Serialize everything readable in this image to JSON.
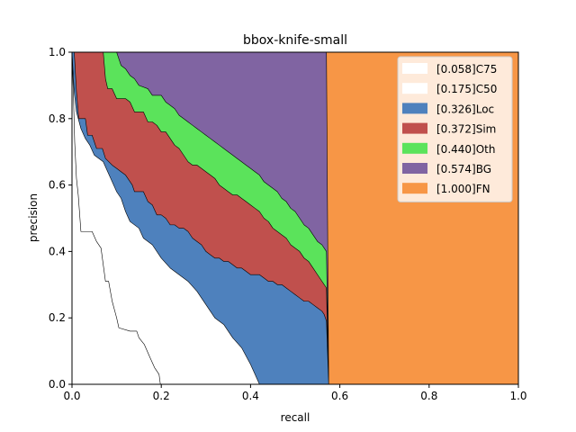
{
  "chart_data": {
    "type": "area",
    "title": "bbox-knife-small",
    "xlabel": "recall",
    "ylabel": "precision",
    "xlim": [
      0,
      1
    ],
    "ylim": [
      0,
      1
    ],
    "xticks": [
      "0.0",
      "0.2",
      "0.4",
      "0.6",
      "0.8",
      "1.0"
    ],
    "yticks": [
      "0.0",
      "0.2",
      "0.4",
      "0.6",
      "0.8",
      "1.0"
    ],
    "grid": false,
    "legend_position": "top-right",
    "series": [
      {
        "name": "[0.058]C75",
        "color": "#ffffff",
        "points": [
          [
            0,
            1.0
          ],
          [
            0.003,
            0.88
          ],
          [
            0.006,
            0.73
          ],
          [
            0.01,
            0.62
          ],
          [
            0.014,
            0.57
          ],
          [
            0.02,
            0.46
          ],
          [
            0.045,
            0.46
          ],
          [
            0.055,
            0.43
          ],
          [
            0.065,
            0.41
          ],
          [
            0.07,
            0.36
          ],
          [
            0.075,
            0.31
          ],
          [
            0.082,
            0.31
          ],
          [
            0.09,
            0.25
          ],
          [
            0.1,
            0.2
          ],
          [
            0.105,
            0.17
          ],
          [
            0.13,
            0.16
          ],
          [
            0.145,
            0.16
          ],
          [
            0.15,
            0.14
          ],
          [
            0.162,
            0.12
          ],
          [
            0.175,
            0.08
          ],
          [
            0.185,
            0.05
          ],
          [
            0.195,
            0.03
          ],
          [
            0.198,
            0
          ]
        ]
      },
      {
        "name": "[0.175]C50",
        "color": "#ffffff",
        "points": [
          [
            0,
            1.0
          ],
          [
            0.005,
            0.88
          ],
          [
            0.01,
            0.82
          ],
          [
            0.02,
            0.77
          ],
          [
            0.03,
            0.74
          ],
          [
            0.04,
            0.72
          ],
          [
            0.05,
            0.69
          ],
          [
            0.07,
            0.67
          ],
          [
            0.08,
            0.64
          ],
          [
            0.09,
            0.61
          ],
          [
            0.1,
            0.58
          ],
          [
            0.11,
            0.56
          ],
          [
            0.12,
            0.52
          ],
          [
            0.13,
            0.49
          ],
          [
            0.15,
            0.47
          ],
          [
            0.16,
            0.44
          ],
          [
            0.18,
            0.42
          ],
          [
            0.2,
            0.38
          ],
          [
            0.22,
            0.35
          ],
          [
            0.24,
            0.33
          ],
          [
            0.26,
            0.31
          ],
          [
            0.28,
            0.28
          ],
          [
            0.3,
            0.24
          ],
          [
            0.32,
            0.2
          ],
          [
            0.34,
            0.18
          ],
          [
            0.36,
            0.14
          ],
          [
            0.38,
            0.11
          ],
          [
            0.4,
            0.06
          ],
          [
            0.41,
            0.03
          ],
          [
            0.42,
            0
          ]
        ]
      },
      {
        "name": "[0.326]Loc",
        "color": "#4e81bd",
        "points": [
          [
            0,
            1.0
          ],
          [
            0.005,
            1.0
          ],
          [
            0.01,
            0.88
          ],
          [
            0.015,
            0.8
          ],
          [
            0.03,
            0.8
          ],
          [
            0.035,
            0.75
          ],
          [
            0.045,
            0.75
          ],
          [
            0.055,
            0.71
          ],
          [
            0.068,
            0.71
          ],
          [
            0.075,
            0.68
          ],
          [
            0.09,
            0.66
          ],
          [
            0.1,
            0.65
          ],
          [
            0.11,
            0.64
          ],
          [
            0.12,
            0.63
          ],
          [
            0.135,
            0.6
          ],
          [
            0.14,
            0.58
          ],
          [
            0.16,
            0.58
          ],
          [
            0.17,
            0.55
          ],
          [
            0.18,
            0.54
          ],
          [
            0.19,
            0.51
          ],
          [
            0.2,
            0.51
          ],
          [
            0.21,
            0.5
          ],
          [
            0.22,
            0.48
          ],
          [
            0.23,
            0.48
          ],
          [
            0.24,
            0.47
          ],
          [
            0.25,
            0.47
          ],
          [
            0.26,
            0.46
          ],
          [
            0.27,
            0.44
          ],
          [
            0.28,
            0.43
          ],
          [
            0.29,
            0.42
          ],
          [
            0.3,
            0.4
          ],
          [
            0.31,
            0.39
          ],
          [
            0.32,
            0.38
          ],
          [
            0.33,
            0.38
          ],
          [
            0.34,
            0.37
          ],
          [
            0.35,
            0.37
          ],
          [
            0.36,
            0.36
          ],
          [
            0.37,
            0.35
          ],
          [
            0.38,
            0.35
          ],
          [
            0.39,
            0.34
          ],
          [
            0.4,
            0.33
          ],
          [
            0.41,
            0.33
          ],
          [
            0.42,
            0.33
          ],
          [
            0.43,
            0.32
          ],
          [
            0.44,
            0.31
          ],
          [
            0.45,
            0.31
          ],
          [
            0.46,
            0.3
          ],
          [
            0.47,
            0.3
          ],
          [
            0.48,
            0.29
          ],
          [
            0.49,
            0.28
          ],
          [
            0.5,
            0.27
          ],
          [
            0.51,
            0.26
          ],
          [
            0.52,
            0.25
          ],
          [
            0.53,
            0.25
          ],
          [
            0.54,
            0.24
          ],
          [
            0.55,
            0.23
          ],
          [
            0.56,
            0.22
          ],
          [
            0.565,
            0.21
          ],
          [
            0.57,
            0.19
          ],
          [
            0.575,
            0.0
          ]
        ]
      },
      {
        "name": "[0.372]Sim",
        "color": "#c0504d",
        "points": [
          [
            0,
            1.0
          ],
          [
            0.07,
            1.0
          ],
          [
            0.075,
            0.92
          ],
          [
            0.08,
            0.89
          ],
          [
            0.09,
            0.89
          ],
          [
            0.1,
            0.86
          ],
          [
            0.12,
            0.86
          ],
          [
            0.13,
            0.85
          ],
          [
            0.14,
            0.82
          ],
          [
            0.16,
            0.82
          ],
          [
            0.17,
            0.79
          ],
          [
            0.18,
            0.79
          ],
          [
            0.19,
            0.78
          ],
          [
            0.2,
            0.76
          ],
          [
            0.21,
            0.76
          ],
          [
            0.22,
            0.74
          ],
          [
            0.23,
            0.72
          ],
          [
            0.24,
            0.71
          ],
          [
            0.25,
            0.69
          ],
          [
            0.26,
            0.67
          ],
          [
            0.27,
            0.66
          ],
          [
            0.28,
            0.66
          ],
          [
            0.29,
            0.65
          ],
          [
            0.3,
            0.64
          ],
          [
            0.31,
            0.63
          ],
          [
            0.32,
            0.62
          ],
          [
            0.33,
            0.6
          ],
          [
            0.34,
            0.59
          ],
          [
            0.35,
            0.58
          ],
          [
            0.36,
            0.57
          ],
          [
            0.37,
            0.57
          ],
          [
            0.38,
            0.56
          ],
          [
            0.39,
            0.55
          ],
          [
            0.4,
            0.54
          ],
          [
            0.41,
            0.53
          ],
          [
            0.42,
            0.52
          ],
          [
            0.43,
            0.5
          ],
          [
            0.44,
            0.49
          ],
          [
            0.45,
            0.47
          ],
          [
            0.46,
            0.46
          ],
          [
            0.47,
            0.45
          ],
          [
            0.48,
            0.44
          ],
          [
            0.49,
            0.42
          ],
          [
            0.5,
            0.41
          ],
          [
            0.51,
            0.4
          ],
          [
            0.52,
            0.38
          ],
          [
            0.53,
            0.37
          ],
          [
            0.54,
            0.35
          ],
          [
            0.55,
            0.33
          ],
          [
            0.56,
            0.31
          ],
          [
            0.57,
            0.29
          ],
          [
            0.575,
            0.0
          ]
        ]
      },
      {
        "name": "[0.440]Oth",
        "color": "#5be35b",
        "points": [
          [
            0,
            1.0
          ],
          [
            0.07,
            1.0
          ],
          [
            0.1,
            1.0
          ],
          [
            0.11,
            0.96
          ],
          [
            0.12,
            0.95
          ],
          [
            0.13,
            0.93
          ],
          [
            0.14,
            0.92
          ],
          [
            0.15,
            0.9
          ],
          [
            0.17,
            0.89
          ],
          [
            0.18,
            0.87
          ],
          [
            0.2,
            0.87
          ],
          [
            0.21,
            0.85
          ],
          [
            0.22,
            0.84
          ],
          [
            0.23,
            0.83
          ],
          [
            0.24,
            0.81
          ],
          [
            0.25,
            0.8
          ],
          [
            0.26,
            0.79
          ],
          [
            0.27,
            0.78
          ],
          [
            0.28,
            0.77
          ],
          [
            0.29,
            0.76
          ],
          [
            0.3,
            0.75
          ],
          [
            0.31,
            0.74
          ],
          [
            0.32,
            0.73
          ],
          [
            0.33,
            0.72
          ],
          [
            0.34,
            0.71
          ],
          [
            0.35,
            0.7
          ],
          [
            0.36,
            0.69
          ],
          [
            0.37,
            0.68
          ],
          [
            0.38,
            0.67
          ],
          [
            0.39,
            0.66
          ],
          [
            0.4,
            0.65
          ],
          [
            0.41,
            0.64
          ],
          [
            0.42,
            0.63
          ],
          [
            0.43,
            0.61
          ],
          [
            0.44,
            0.6
          ],
          [
            0.45,
            0.59
          ],
          [
            0.46,
            0.58
          ],
          [
            0.47,
            0.56
          ],
          [
            0.48,
            0.55
          ],
          [
            0.49,
            0.53
          ],
          [
            0.5,
            0.52
          ],
          [
            0.51,
            0.5
          ],
          [
            0.52,
            0.48
          ],
          [
            0.53,
            0.47
          ],
          [
            0.54,
            0.45
          ],
          [
            0.55,
            0.43
          ],
          [
            0.56,
            0.42
          ],
          [
            0.57,
            0.4
          ],
          [
            0.575,
            0.0
          ]
        ]
      },
      {
        "name": "[0.574]BG",
        "color": "#8064a2",
        "points": [
          [
            0,
            1.0
          ],
          [
            0.57,
            1.0
          ],
          [
            0.575,
            0.0
          ]
        ]
      },
      {
        "name": "[1.000]FN",
        "color": "#f79646",
        "points": [
          [
            0,
            1.0
          ],
          [
            1.0,
            1.0
          ],
          [
            1.0,
            0.0
          ]
        ]
      }
    ]
  }
}
